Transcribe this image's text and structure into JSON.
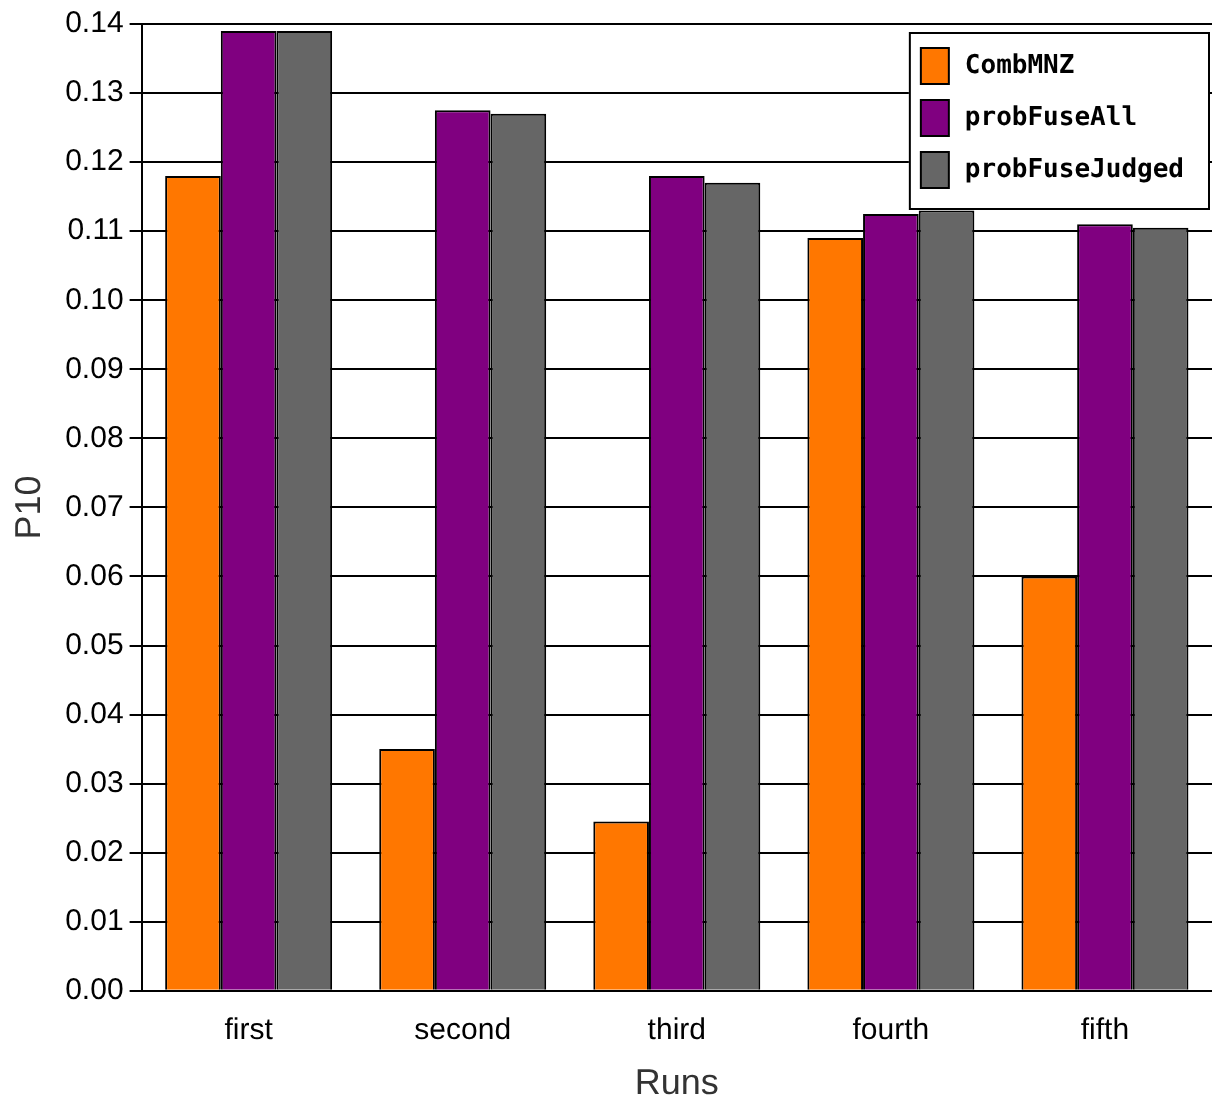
{
  "chart_data": {
    "type": "bar",
    "xlabel": "Runs",
    "ylabel": "P10",
    "categories": [
      "first",
      "second",
      "third",
      "fourth",
      "fifth"
    ],
    "series": [
      {
        "name": "CombMNZ",
        "color": "#ff7700",
        "values": [
          0.118,
          0.035,
          0.0245,
          0.109,
          0.06
        ]
      },
      {
        "name": "probFuseAll",
        "color": "#800080",
        "values": [
          0.139,
          0.1275,
          0.118,
          0.1125,
          0.111
        ]
      },
      {
        "name": "probFuseJudged",
        "color": "#666666",
        "values": [
          0.139,
          0.127,
          0.117,
          0.113,
          0.1105
        ]
      }
    ],
    "ylim": [
      0,
      0.14
    ],
    "yticks": [
      {
        "value": 0,
        "label": "0.00"
      },
      {
        "value": 0.01,
        "label": "0.01"
      },
      {
        "value": 0.02,
        "label": "0.02"
      },
      {
        "value": 0.03,
        "label": "0.03"
      },
      {
        "value": 0.04,
        "label": "0.04"
      },
      {
        "value": 0.05,
        "label": "0.05"
      },
      {
        "value": 0.06,
        "label": "0.06"
      },
      {
        "value": 0.07,
        "label": "0.07"
      },
      {
        "value": 0.08,
        "label": "0.08"
      },
      {
        "value": 0.09,
        "label": "0.09"
      },
      {
        "value": 0.1,
        "label": "0.10"
      },
      {
        "value": 0.11,
        "label": "0.11"
      },
      {
        "value": 0.12,
        "label": "0.12"
      },
      {
        "value": 0.13,
        "label": "0.13"
      },
      {
        "value": 0.14,
        "label": "0.14"
      }
    ],
    "grid": "y",
    "legend": "top right"
  }
}
